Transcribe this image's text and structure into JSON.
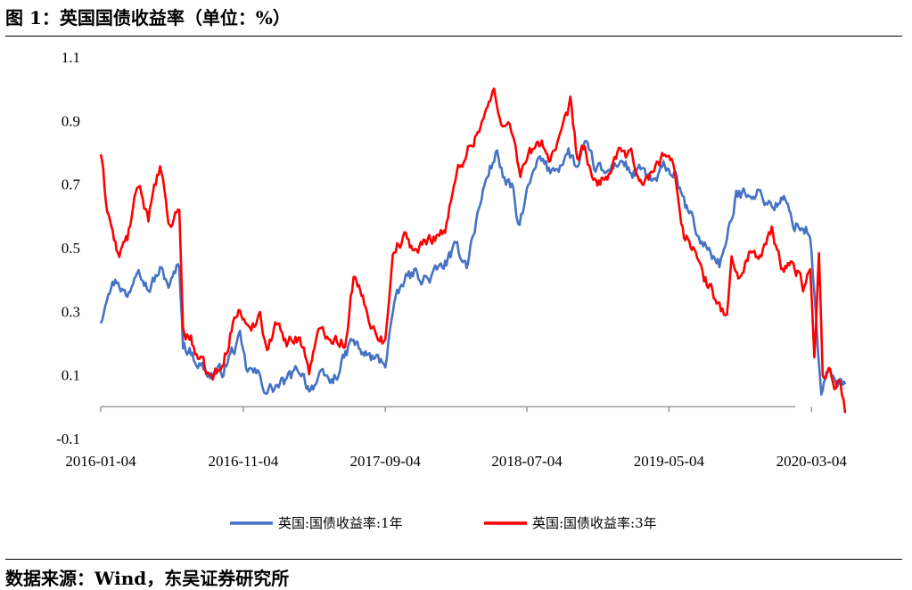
{
  "header": {
    "title": "图 1：英国国债收益率（单位：%）"
  },
  "footer": {
    "source": "数据来源：Wind，东吴证券研究所"
  },
  "chart_data": {
    "type": "line",
    "title": "图 1：英国国债收益率（单位：%）",
    "xlabel": "",
    "ylabel": "",
    "ylim": [
      -0.1,
      1.1
    ],
    "yticks": [
      "1.1",
      "0.9",
      "0.7",
      "0.5",
      "0.3",
      "0.1",
      "-0.1"
    ],
    "xticks": [
      "2016-01-04",
      "2016-11-04",
      "2017-09-04",
      "2018-07-04",
      "2019-05-04",
      "2020-03-04"
    ],
    "xrange": [
      "2016-01-04",
      "2020-05-15"
    ],
    "grid": false,
    "legend": "bottom",
    "series": [
      {
        "name": "英国:国债收益率:1年",
        "color": "#4472C4",
        "points": [
          [
            "2016-01-04",
            0.27
          ],
          [
            "2016-01-20",
            0.38
          ],
          [
            "2016-02-10",
            0.4
          ],
          [
            "2016-03-01",
            0.34
          ],
          [
            "2016-03-25",
            0.46
          ],
          [
            "2016-04-15",
            0.37
          ],
          [
            "2016-05-10",
            0.43
          ],
          [
            "2016-05-31",
            0.38
          ],
          [
            "2016-06-20",
            0.45
          ],
          [
            "2016-06-28",
            0.2
          ],
          [
            "2016-07-15",
            0.17
          ],
          [
            "2016-08-05",
            0.13
          ],
          [
            "2016-08-25",
            0.1
          ],
          [
            "2016-09-20",
            0.11
          ],
          [
            "2016-10-10",
            0.17
          ],
          [
            "2016-10-28",
            0.21
          ],
          [
            "2016-11-10",
            0.12
          ],
          [
            "2016-12-05",
            0.1
          ],
          [
            "2016-12-25",
            0.05
          ],
          [
            "2017-01-10",
            0.06
          ],
          [
            "2017-02-05",
            0.08
          ],
          [
            "2017-03-05",
            0.12
          ],
          [
            "2017-03-25",
            0.06
          ],
          [
            "2017-04-20",
            0.09
          ],
          [
            "2017-05-15",
            0.08
          ],
          [
            "2017-06-05",
            0.14
          ],
          [
            "2017-06-25",
            0.21
          ],
          [
            "2017-07-15",
            0.17
          ],
          [
            "2017-08-10",
            0.15
          ],
          [
            "2017-09-04",
            0.14
          ],
          [
            "2017-09-20",
            0.3
          ],
          [
            "2017-10-15",
            0.4
          ],
          [
            "2017-11-05",
            0.42
          ],
          [
            "2017-12-05",
            0.4
          ],
          [
            "2018-01-10",
            0.45
          ],
          [
            "2018-02-05",
            0.5
          ],
          [
            "2018-02-25",
            0.45
          ],
          [
            "2018-03-20",
            0.6
          ],
          [
            "2018-04-10",
            0.73
          ],
          [
            "2018-05-01",
            0.8
          ],
          [
            "2018-05-20",
            0.7
          ],
          [
            "2018-06-05",
            0.68
          ],
          [
            "2018-06-15",
            0.56
          ],
          [
            "2018-06-25",
            0.62
          ],
          [
            "2018-07-10",
            0.7
          ],
          [
            "2018-08-01",
            0.78
          ],
          [
            "2018-08-20",
            0.74
          ],
          [
            "2018-09-10",
            0.76
          ],
          [
            "2018-10-01",
            0.8
          ],
          [
            "2018-10-20",
            0.75
          ],
          [
            "2018-11-05",
            0.82
          ],
          [
            "2018-11-25",
            0.76
          ],
          [
            "2018-12-20",
            0.73
          ],
          [
            "2019-01-20",
            0.78
          ],
          [
            "2019-02-15",
            0.73
          ],
          [
            "2019-03-10",
            0.74
          ],
          [
            "2019-04-05",
            0.7
          ],
          [
            "2019-04-25",
            0.76
          ],
          [
            "2019-05-15",
            0.73
          ],
          [
            "2019-06-05",
            0.64
          ],
          [
            "2019-06-25",
            0.58
          ],
          [
            "2019-07-10",
            0.52
          ],
          [
            "2019-08-01",
            0.49
          ],
          [
            "2019-08-20",
            0.45
          ],
          [
            "2019-09-05",
            0.52
          ],
          [
            "2019-09-25",
            0.66
          ],
          [
            "2019-10-20",
            0.68
          ],
          [
            "2019-11-15",
            0.67
          ],
          [
            "2019-12-10",
            0.63
          ],
          [
            "2020-01-05",
            0.65
          ],
          [
            "2020-01-25",
            0.58
          ],
          [
            "2020-02-15",
            0.56
          ],
          [
            "2020-03-01",
            0.55
          ],
          [
            "2020-03-10",
            0.35
          ],
          [
            "2020-03-18",
            0.18
          ],
          [
            "2020-03-25",
            0.04
          ],
          [
            "2020-04-05",
            0.1
          ],
          [
            "2020-04-25",
            0.08
          ],
          [
            "2020-05-15",
            0.07
          ]
        ]
      },
      {
        "name": "英国:国债收益率:3年",
        "color": "#FF0000",
        "points": [
          [
            "2016-01-04",
            0.8
          ],
          [
            "2016-01-15",
            0.65
          ],
          [
            "2016-02-10",
            0.47
          ],
          [
            "2016-03-01",
            0.53
          ],
          [
            "2016-03-25",
            0.7
          ],
          [
            "2016-04-15",
            0.6
          ],
          [
            "2016-05-10",
            0.75
          ],
          [
            "2016-05-31",
            0.56
          ],
          [
            "2016-06-20",
            0.63
          ],
          [
            "2016-06-28",
            0.24
          ],
          [
            "2016-07-15",
            0.21
          ],
          [
            "2016-08-05",
            0.14
          ],
          [
            "2016-08-25",
            0.09
          ],
          [
            "2016-09-20",
            0.12
          ],
          [
            "2016-10-10",
            0.25
          ],
          [
            "2016-10-28",
            0.31
          ],
          [
            "2016-11-15",
            0.23
          ],
          [
            "2016-12-10",
            0.3
          ],
          [
            "2016-12-25",
            0.18
          ],
          [
            "2017-01-20",
            0.28
          ],
          [
            "2017-02-05",
            0.2
          ],
          [
            "2017-03-05",
            0.22
          ],
          [
            "2017-03-25",
            0.12
          ],
          [
            "2017-04-20",
            0.25
          ],
          [
            "2017-05-15",
            0.22
          ],
          [
            "2017-06-10",
            0.2
          ],
          [
            "2017-06-28",
            0.41
          ],
          [
            "2017-07-15",
            0.34
          ],
          [
            "2017-08-10",
            0.25
          ],
          [
            "2017-09-04",
            0.2
          ],
          [
            "2017-09-20",
            0.5
          ],
          [
            "2017-10-15",
            0.53
          ],
          [
            "2017-11-10",
            0.49
          ],
          [
            "2017-12-10",
            0.53
          ],
          [
            "2018-01-10",
            0.56
          ],
          [
            "2018-02-10",
            0.76
          ],
          [
            "2018-02-25",
            0.8
          ],
          [
            "2018-03-15",
            0.85
          ],
          [
            "2018-04-05",
            0.92
          ],
          [
            "2018-04-25",
            0.99
          ],
          [
            "2018-05-10",
            0.88
          ],
          [
            "2018-05-25",
            0.92
          ],
          [
            "2018-06-10",
            0.8
          ],
          [
            "2018-06-20",
            0.74
          ],
          [
            "2018-07-10",
            0.79
          ],
          [
            "2018-08-05",
            0.84
          ],
          [
            "2018-08-20",
            0.78
          ],
          [
            "2018-09-10",
            0.82
          ],
          [
            "2018-10-05",
            0.95
          ],
          [
            "2018-10-20",
            0.78
          ],
          [
            "2018-11-05",
            0.82
          ],
          [
            "2018-11-20",
            0.7
          ],
          [
            "2018-12-20",
            0.72
          ],
          [
            "2019-01-20",
            0.8
          ],
          [
            "2019-02-15",
            0.78
          ],
          [
            "2019-03-10",
            0.7
          ],
          [
            "2019-04-05",
            0.75
          ],
          [
            "2019-04-25",
            0.81
          ],
          [
            "2019-05-10",
            0.77
          ],
          [
            "2019-06-05",
            0.55
          ],
          [
            "2019-06-25",
            0.5
          ],
          [
            "2019-07-15",
            0.41
          ],
          [
            "2019-08-05",
            0.36
          ],
          [
            "2019-08-20",
            0.32
          ],
          [
            "2019-09-05",
            0.28
          ],
          [
            "2019-09-15",
            0.46
          ],
          [
            "2019-10-05",
            0.4
          ],
          [
            "2019-10-25",
            0.5
          ],
          [
            "2019-11-15",
            0.46
          ],
          [
            "2019-12-10",
            0.55
          ],
          [
            "2020-01-05",
            0.42
          ],
          [
            "2020-01-25",
            0.46
          ],
          [
            "2020-02-15",
            0.38
          ],
          [
            "2020-03-01",
            0.44
          ],
          [
            "2020-03-10",
            0.15
          ],
          [
            "2020-03-20",
            0.48
          ],
          [
            "2020-03-28",
            0.1
          ],
          [
            "2020-04-10",
            0.13
          ],
          [
            "2020-04-25",
            0.06
          ],
          [
            "2020-05-05",
            0.08
          ],
          [
            "2020-05-15",
            -0.02
          ]
        ]
      }
    ]
  }
}
